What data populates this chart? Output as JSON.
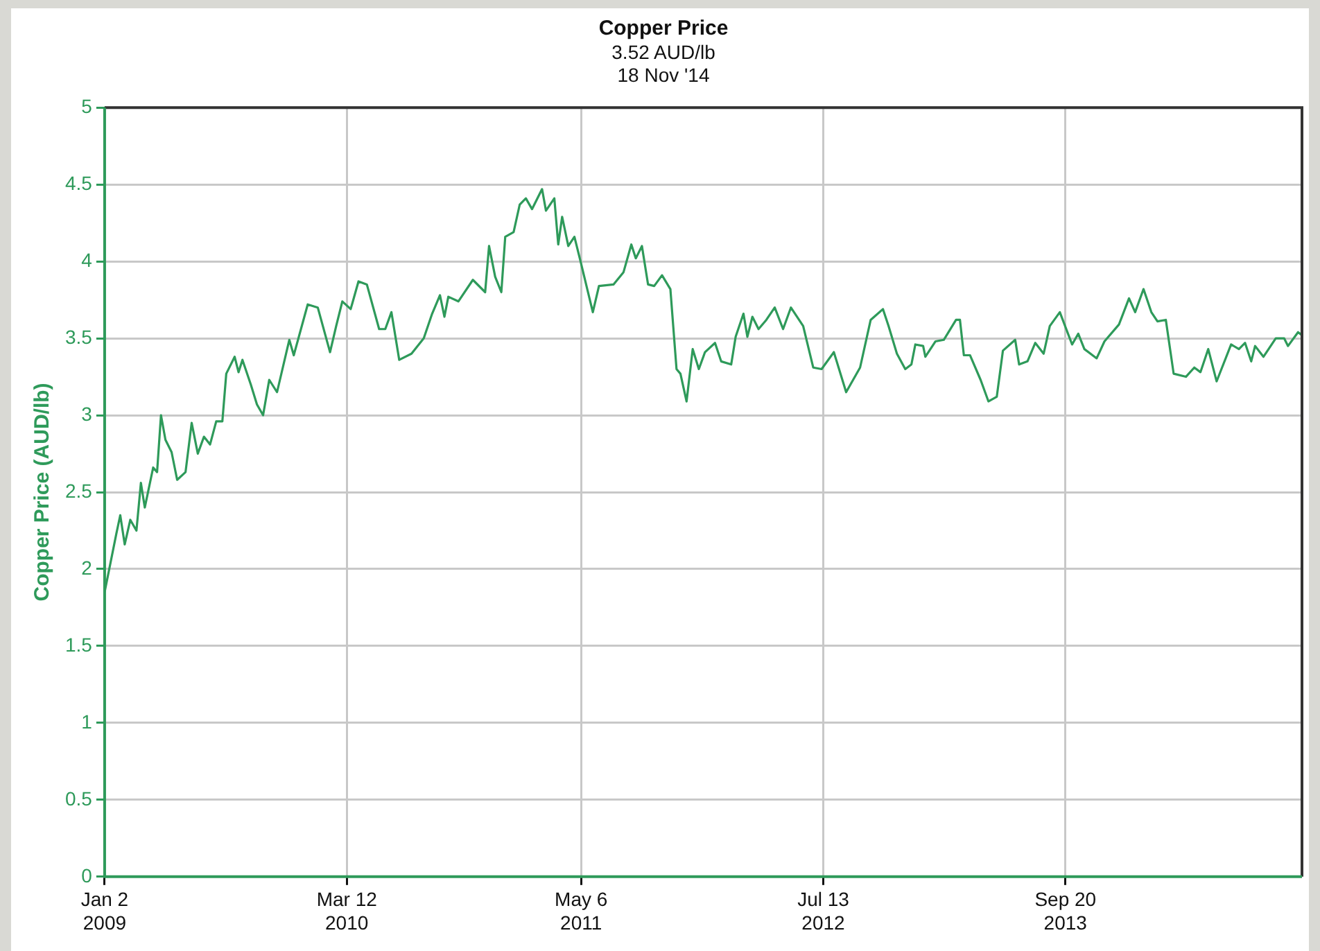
{
  "chart_data": {
    "type": "line",
    "title": "Copper Price",
    "subtitle": "3.52 AUD/lb\n18 Nov '14",
    "ylabel": "Copper Price (AUD/lb)",
    "xlim": [
      "2009-01-02",
      "2014-11-18"
    ],
    "xticks": [
      {
        "value": "2009-01-02",
        "label": "Jan 2\n2009"
      },
      {
        "value": "2010-03-12",
        "label": "Mar 12\n2010"
      },
      {
        "value": "2011-05-06",
        "label": "May 6\n2011"
      },
      {
        "value": "2012-07-13",
        "label": "Jul 13\n2012"
      },
      {
        "value": "2013-09-20",
        "label": "Sep 20\n2013"
      }
    ],
    "ylim": [
      0,
      5
    ],
    "yticks": [
      0,
      0.5,
      1,
      1.5,
      2,
      2.5,
      3,
      3.5,
      4,
      4.5,
      5
    ],
    "grid": true,
    "legend": false,
    "marker": "none",
    "line_style": "solid",
    "series": [
      {
        "color": "#2e9a5a",
        "x": [
          "2009-01-02",
          "2009-01-23",
          "2009-01-30",
          "2009-02-07",
          "2009-02-17",
          "2009-02-28",
          "2009-03-08",
          "2009-03-15",
          "2009-03-30",
          "2009-04-06",
          "2009-04-13",
          "2009-04-21",
          "2009-05-02",
          "2009-05-12",
          "2009-05-27",
          "2009-06-07",
          "2009-06-18",
          "2009-06-29",
          "2009-07-10",
          "2009-07-21",
          "2009-08-01",
          "2009-08-08",
          "2009-08-23",
          "2009-08-30",
          "2009-09-06",
          "2009-09-21",
          "2009-10-02",
          "2009-10-13",
          "2009-10-24",
          "2009-11-07",
          "2009-11-29",
          "2009-12-07",
          "2010-01-01",
          "2010-01-19",
          "2010-02-10",
          "2010-02-21",
          "2010-03-04",
          "2010-03-19",
          "2010-04-02",
          "2010-04-17",
          "2010-05-09",
          "2010-05-20",
          "2010-05-31",
          "2010-06-14",
          "2010-07-06",
          "2010-07-28",
          "2010-08-12",
          "2010-08-26",
          "2010-09-03",
          "2010-09-10",
          "2010-09-28",
          "2010-10-24",
          "2010-11-15",
          "2010-11-22",
          "2010-12-03",
          "2010-12-14",
          "2010-12-21",
          "2011-01-05",
          "2011-01-16",
          "2011-01-27",
          "2011-02-07",
          "2011-02-25",
          "2011-03-04",
          "2011-03-19",
          "2011-03-26",
          "2011-04-02",
          "2011-04-13",
          "2011-04-24",
          "2011-05-05",
          "2011-05-27",
          "2011-06-07",
          "2011-07-03",
          "2011-07-21",
          "2011-08-04",
          "2011-08-12",
          "2011-08-23",
          "2011-09-03",
          "2011-09-14",
          "2011-09-28",
          "2011-10-13",
          "2011-10-24",
          "2011-10-31",
          "2011-11-11",
          "2011-11-22",
          "2011-12-03",
          "2011-12-14",
          "2012-01-01",
          "2012-01-12",
          "2012-01-30",
          "2012-02-07",
          "2012-02-21",
          "2012-02-28",
          "2012-03-08",
          "2012-03-19",
          "2012-04-02",
          "2012-04-17",
          "2012-05-02",
          "2012-05-16",
          "2012-06-07",
          "2012-06-25",
          "2012-07-10",
          "2012-08-01",
          "2012-08-23",
          "2012-09-17",
          "2012-10-06",
          "2012-10-28",
          "2012-11-07",
          "2012-11-22",
          "2012-12-07",
          "2012-12-18",
          "2012-12-25",
          "2013-01-08",
          "2013-01-12",
          "2013-01-30",
          "2013-02-14",
          "2013-03-08",
          "2013-03-15",
          "2013-03-22",
          "2013-04-02",
          "2013-04-21",
          "2013-05-05",
          "2013-05-20",
          "2013-05-31",
          "2013-06-22",
          "2013-06-29",
          "2013-07-14",
          "2013-07-28",
          "2013-08-12",
          "2013-08-23",
          "2013-09-10",
          "2013-10-02",
          "2013-10-13",
          "2013-10-24",
          "2013-11-15",
          "2013-11-29",
          "2013-12-25",
          "2014-01-12",
          "2014-01-23",
          "2014-02-07",
          "2014-02-21",
          "2014-03-04",
          "2014-03-19",
          "2014-04-02",
          "2014-04-24",
          "2014-05-09",
          "2014-05-20",
          "2014-06-03",
          "2014-06-18",
          "2014-07-14",
          "2014-07-28",
          "2014-08-08",
          "2014-08-19",
          "2014-08-26",
          "2014-09-10",
          "2014-10-02",
          "2014-10-17",
          "2014-10-24",
          "2014-11-11",
          "2014-11-18"
        ],
        "values": [
          1.85,
          2.23,
          2.35,
          2.16,
          2.32,
          2.25,
          2.56,
          2.4,
          2.66,
          2.63,
          3.0,
          2.84,
          2.76,
          2.58,
          2.63,
          2.95,
          2.75,
          2.86,
          2.81,
          2.96,
          2.96,
          3.27,
          3.38,
          3.28,
          3.36,
          3.2,
          3.07,
          3.0,
          3.23,
          3.15,
          3.49,
          3.39,
          3.72,
          3.7,
          3.41,
          3.58,
          3.74,
          3.69,
          3.87,
          3.85,
          3.56,
          3.56,
          3.67,
          3.36,
          3.4,
          3.5,
          3.66,
          3.78,
          3.64,
          3.77,
          3.74,
          3.88,
          3.8,
          4.1,
          3.9,
          3.8,
          4.16,
          4.19,
          4.37,
          4.41,
          4.34,
          4.47,
          4.33,
          4.41,
          4.11,
          4.29,
          4.1,
          4.16,
          4.0,
          3.67,
          3.84,
          3.85,
          3.93,
          4.11,
          4.02,
          4.1,
          3.85,
          3.84,
          3.91,
          3.82,
          3.3,
          3.27,
          3.09,
          3.43,
          3.3,
          3.41,
          3.47,
          3.35,
          3.33,
          3.51,
          3.66,
          3.51,
          3.64,
          3.56,
          3.62,
          3.7,
          3.56,
          3.7,
          3.58,
          3.31,
          3.3,
          3.41,
          3.15,
          3.31,
          3.62,
          3.69,
          3.58,
          3.4,
          3.3,
          3.33,
          3.46,
          3.45,
          3.38,
          3.48,
          3.49,
          3.62,
          3.62,
          3.39,
          3.39,
          3.23,
          3.09,
          3.12,
          3.42,
          3.49,
          3.33,
          3.35,
          3.47,
          3.4,
          3.58,
          3.67,
          3.46,
          3.53,
          3.43,
          3.37,
          3.48,
          3.59,
          3.76,
          3.67,
          3.82,
          3.67,
          3.61,
          3.62,
          3.27,
          3.25,
          3.31,
          3.28,
          3.43,
          3.22,
          3.46,
          3.43,
          3.47,
          3.35,
          3.45,
          3.38,
          3.5,
          3.5,
          3.45,
          3.54,
          3.52
        ]
      }
    ]
  }
}
